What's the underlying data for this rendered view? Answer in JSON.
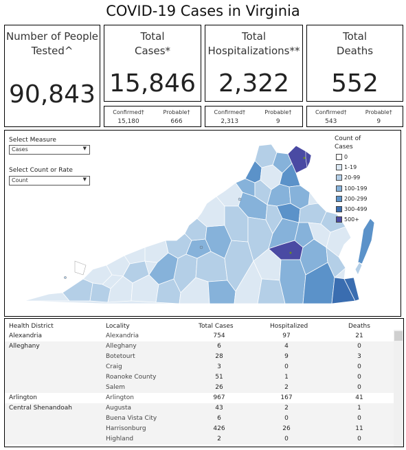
{
  "title": "COVID-19 Cases in Virginia",
  "kpis": {
    "tested": {
      "label1": "Number of People",
      "label2": "Tested^",
      "value": "90,843"
    },
    "cases": {
      "label1": "Total",
      "label2": "Cases*",
      "value": "15,846",
      "sub": {
        "c1": "Confirmed†",
        "c2": "Probable†",
        "v1": "15,180",
        "v2": "666"
      }
    },
    "hosp": {
      "label1": "Total",
      "label2": "Hospitalizations**",
      "value": "2,322",
      "sub": {
        "c1": "Confirmed†",
        "c2": "Probable†",
        "v1": "2,313",
        "v2": "9"
      }
    },
    "deaths": {
      "label1": "Total",
      "label2": "Deaths",
      "value": "552",
      "sub": {
        "c1": "Confirmed†",
        "c2": "Probable†",
        "v1": "543",
        "v2": "9"
      }
    }
  },
  "controls": {
    "measure_label": "Select Measure",
    "measure_value": "Cases",
    "count_label": "Select Count or Rate",
    "count_value": "Count"
  },
  "legend": {
    "title1": "Count of",
    "title2": "Cases",
    "items": [
      {
        "label": "0",
        "color": "#ffffff"
      },
      {
        "label": "1-19",
        "color": "#dce8f3"
      },
      {
        "label": "20-99",
        "color": "#b4cfe7"
      },
      {
        "label": "100-199",
        "color": "#86b2da"
      },
      {
        "label": "200-299",
        "color": "#5b92c9"
      },
      {
        "label": "300-499",
        "color": "#3a6db0"
      },
      {
        "label": "500+",
        "color": "#4a4aa3"
      }
    ]
  },
  "table": {
    "headers": {
      "district": "Health District",
      "locality": "Locality",
      "cases": "Total Cases",
      "hosp": "Hospitalized",
      "deaths": "Deaths"
    },
    "rows": [
      {
        "district": "Alexandria",
        "locality": "Alexandria",
        "cases": "754",
        "hosp": "97",
        "deaths": "21"
      },
      {
        "district": "Alleghany",
        "locality": "Alleghany",
        "cases": "6",
        "hosp": "4",
        "deaths": "0"
      },
      {
        "district": "",
        "locality": "Botetourt",
        "cases": "28",
        "hosp": "9",
        "deaths": "3"
      },
      {
        "district": "",
        "locality": "Craig",
        "cases": "3",
        "hosp": "0",
        "deaths": "0"
      },
      {
        "district": "",
        "locality": "Roanoke County",
        "cases": "51",
        "hosp": "1",
        "deaths": "0"
      },
      {
        "district": "",
        "locality": "Salem",
        "cases": "26",
        "hosp": "2",
        "deaths": "0"
      },
      {
        "district": "Arlington",
        "locality": "Arlington",
        "cases": "967",
        "hosp": "167",
        "deaths": "41"
      },
      {
        "district": "Central Shenandoah",
        "locality": "Augusta",
        "cases": "43",
        "hosp": "2",
        "deaths": "1"
      },
      {
        "district": "",
        "locality": "Buena Vista City",
        "cases": "6",
        "hosp": "0",
        "deaths": "0"
      },
      {
        "district": "",
        "locality": "Harrisonburg",
        "cases": "426",
        "hosp": "26",
        "deaths": "11"
      },
      {
        "district": "",
        "locality": "Highland",
        "cases": "2",
        "hosp": "0",
        "deaths": "0"
      }
    ]
  }
}
